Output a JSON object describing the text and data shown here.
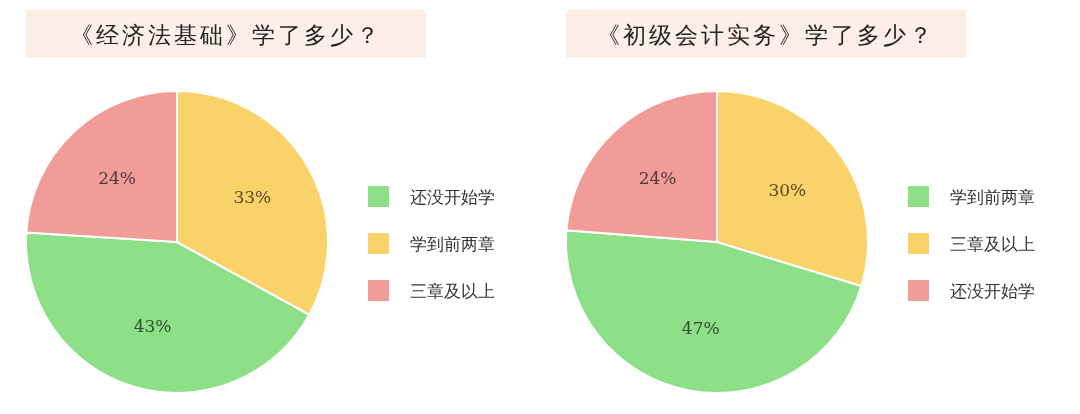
{
  "chart_data": [
    {
      "type": "pie",
      "title": "《经济法基础》学了多少？",
      "categories": [
        "还没开始学",
        "学到前两章",
        "三章及以上"
      ],
      "values": [
        43,
        33,
        24
      ],
      "value_labels": [
        "43%",
        "33%",
        "24%"
      ],
      "colors": [
        "#8ddf88",
        "#fad26a",
        "#f19c99"
      ],
      "legend": "right"
    },
    {
      "type": "pie",
      "title": "《初级会计实务》学了多少？",
      "categories": [
        "学到前两章",
        "三章及以上",
        "还没开始学"
      ],
      "values": [
        47,
        30,
        24
      ],
      "value_labels": [
        "47%",
        "30%",
        "24%"
      ],
      "colors": [
        "#8ddf88",
        "#fad26a",
        "#f19c99"
      ],
      "legend": "right"
    }
  ]
}
